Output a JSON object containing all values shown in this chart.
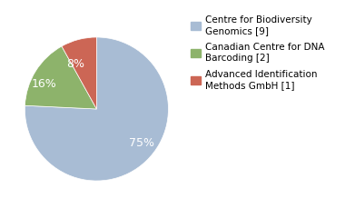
{
  "slices": [
    75,
    16,
    8
  ],
  "labels": [
    "75%",
    "16%",
    "8%"
  ],
  "colors": [
    "#a8bcd4",
    "#8db36b",
    "#cc6655"
  ],
  "legend_labels": [
    "Centre for Biodiversity\nGenomics [9]",
    "Canadian Centre for DNA\nBarcoding [2]",
    "Advanced Identification\nMethods GmbH [1]"
  ],
  "startangle": 90,
  "legend_fontsize": 7.5,
  "label_fontsize": 9,
  "background_color": "#ffffff"
}
